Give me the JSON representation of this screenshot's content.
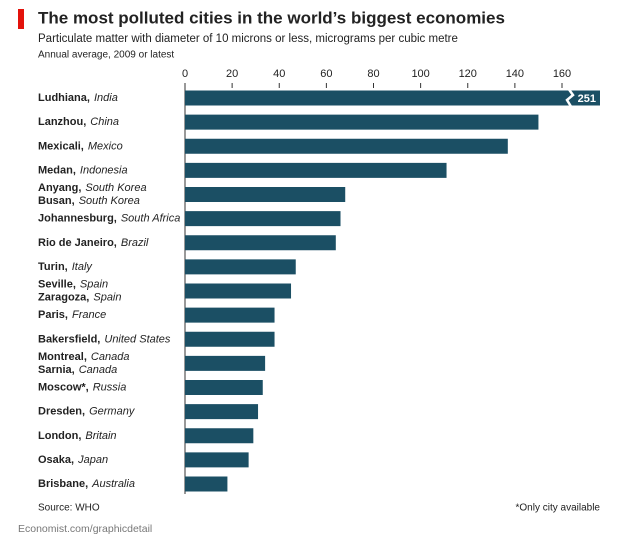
{
  "chart_data": {
    "type": "bar",
    "orientation": "horizontal",
    "title": "The most polluted cities in the world’s biggest economies",
    "subtitle": "Particulate matter with diameter of 10 microns or less, micrograms per cubic metre",
    "note": "Annual average, 2009 or latest",
    "source": "Source: WHO",
    "footnote": "*Only city available",
    "credit": "Economist.com/graphicdetail",
    "categories": [
      [
        {
          "city": "Ludhiana,",
          "country": "India"
        }
      ],
      [
        {
          "city": "Lanzhou,",
          "country": "China"
        }
      ],
      [
        {
          "city": "Mexicali,",
          "country": "Mexico"
        }
      ],
      [
        {
          "city": "Medan,",
          "country": "Indonesia"
        }
      ],
      [
        {
          "city": "Anyang,",
          "country": "South Korea"
        },
        {
          "city": "Busan,",
          "country": "South Korea"
        }
      ],
      [
        {
          "city": "Johannesburg,",
          "country": "South Africa"
        }
      ],
      [
        {
          "city": "Rio de Janeiro,",
          "country": "Brazil"
        }
      ],
      [
        {
          "city": "Turin,",
          "country": "Italy"
        }
      ],
      [
        {
          "city": "Seville,",
          "country": "Spain"
        },
        {
          "city": "Zaragoza,",
          "country": "Spain"
        }
      ],
      [
        {
          "city": "Paris,",
          "country": "France"
        }
      ],
      [
        {
          "city": "Bakersfield,",
          "country": "United States"
        }
      ],
      [
        {
          "city": "Montreal,",
          "country": "Canada"
        },
        {
          "city": "Sarnia,",
          "country": "Canada"
        }
      ],
      [
        {
          "city": "Moscow*,",
          "country": "Russia"
        }
      ],
      [
        {
          "city": "Dresden,",
          "country": "Germany"
        }
      ],
      [
        {
          "city": "London,",
          "country": "Britain"
        }
      ],
      [
        {
          "city": "Osaka,",
          "country": "Japan"
        }
      ],
      [
        {
          "city": "Brisbane,",
          "country": "Australia"
        }
      ]
    ],
    "values": [
      251,
      150,
      137,
      111,
      68,
      66,
      64,
      47,
      45,
      38,
      38,
      34,
      33,
      31,
      29,
      27,
      18
    ],
    "value_labels": [
      "251",
      null,
      null,
      null,
      null,
      null,
      null,
      null,
      null,
      null,
      null,
      null,
      null,
      null,
      null,
      null,
      null
    ],
    "color": "#1b4f64",
    "xlim": [
      0,
      160
    ],
    "xticks": [
      0,
      20,
      40,
      60,
      80,
      100,
      120,
      140,
      160
    ],
    "grid": false
  }
}
